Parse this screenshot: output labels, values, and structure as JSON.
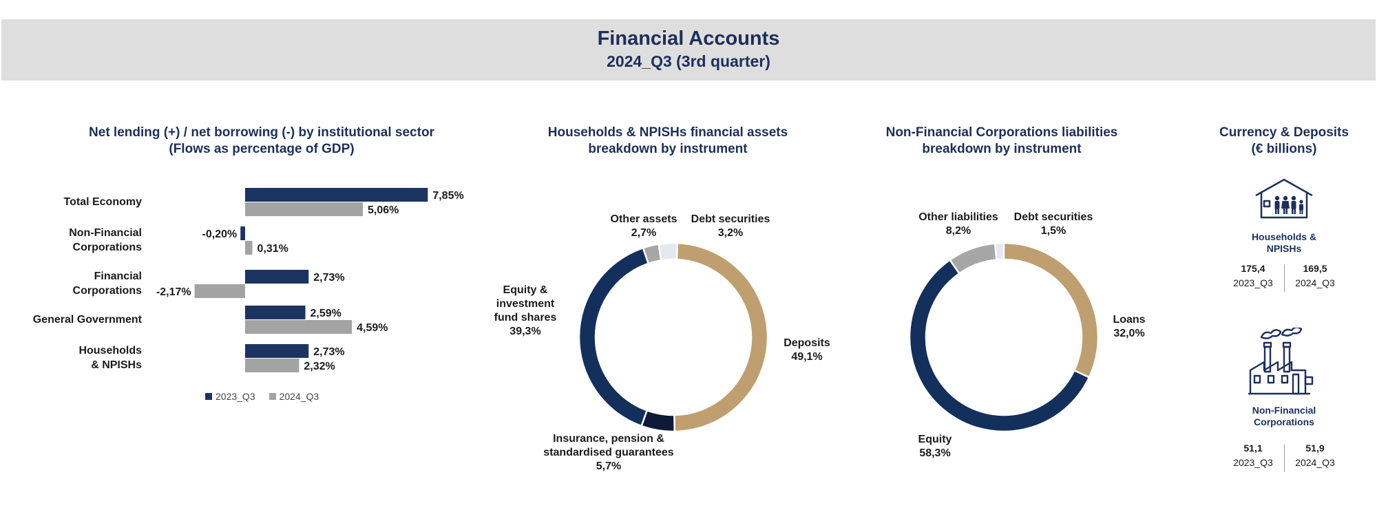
{
  "header": {
    "title": "Financial Accounts",
    "subtitle": "2024_Q3 (3rd quarter)"
  },
  "chart_data": [
    {
      "type": "bar",
      "orientation": "horizontal",
      "title_lines": [
        "Net lending (+) / net borrowing (-) by institutional sector",
        "(Flows as percentage of GDP)"
      ],
      "categories": [
        {
          "lines": [
            "Total Economy"
          ]
        },
        {
          "lines": [
            "Non-Financial",
            "Corporations"
          ]
        },
        {
          "lines": [
            "Financial",
            "Corporations"
          ]
        },
        {
          "lines": [
            "General Government"
          ]
        },
        {
          "lines": [
            "Households",
            "& NPISHs"
          ]
        }
      ],
      "series": [
        {
          "name": "2023_Q3",
          "color": "#1c3461",
          "values": [
            7.85,
            -0.2,
            2.73,
            2.59,
            2.73
          ],
          "labels": [
            "7,85%",
            "-0,20%",
            "2,73%",
            "2,59%",
            "2,73%"
          ]
        },
        {
          "name": "2024_Q3",
          "color": "#a3a3a3",
          "values": [
            5.06,
            0.31,
            -2.17,
            4.59,
            2.32
          ],
          "labels": [
            "5,06%",
            "0,31%",
            "-2,17%",
            "4,59%",
            "2,32%"
          ]
        }
      ],
      "legend_position": "bottom"
    },
    {
      "type": "pie",
      "donut": true,
      "title_lines": [
        "Households & NPISHs financial assets",
        "breakdown by instrument"
      ],
      "slices": [
        {
          "lines": [
            "Debt securities"
          ],
          "pct": "3,2%",
          "value": 3.2,
          "color": "#e4e8f1"
        },
        {
          "lines": [
            "Deposits"
          ],
          "pct": "49,1%",
          "value": 49.1,
          "color": "#bf9f6f"
        },
        {
          "lines": [
            "Insurance, pension &",
            "standardised guarantees"
          ],
          "pct": "5,7%",
          "value": 5.7,
          "color": "#0e1a36"
        },
        {
          "lines": [
            "Equity &",
            "investment",
            "fund shares"
          ],
          "pct": "39,3%",
          "value": 39.3,
          "color": "#13305d"
        },
        {
          "lines": [
            "Other assets"
          ],
          "pct": "2,7%",
          "value": 2.7,
          "color": "#a6a6a6"
        }
      ]
    },
    {
      "type": "pie",
      "donut": true,
      "title_lines": [
        "Non-Financial Corporations liabilities",
        "breakdown by instrument"
      ],
      "slices": [
        {
          "lines": [
            "Debt securities"
          ],
          "pct": "1,5%",
          "value": 1.5,
          "color": "#e4e8f1"
        },
        {
          "lines": [
            "Loans"
          ],
          "pct": "32,0%",
          "value": 32.0,
          "color": "#bf9f6f"
        },
        {
          "lines": [
            "Equity"
          ],
          "pct": "58,3%",
          "value": 58.3,
          "color": "#13305d"
        },
        {
          "lines": [
            "Other liabilities"
          ],
          "pct": "8,2%",
          "value": 8.2,
          "color": "#a6a6a6"
        }
      ]
    }
  ],
  "currency_deposits": {
    "title_lines": [
      "Currency & Deposits",
      "(€ billions)"
    ],
    "sectors": [
      {
        "icon": "house-family-icon",
        "lines": [
          "Households &",
          "NPISHs"
        ],
        "v2023": "175,4",
        "v2024": "169,5",
        "q2023": "2023_Q3",
        "q2024": "2024_Q3"
      },
      {
        "icon": "factory-icon",
        "lines": [
          "Non-Financial",
          "Corporations"
        ],
        "v2023": "51,1",
        "v2024": "51,9",
        "q2023": "2023_Q3",
        "q2024": "2024_Q3"
      }
    ]
  },
  "colors": {
    "navy": "#1c2f5c",
    "gold": "#bf9f6f",
    "grey": "#a3a3a3",
    "banner": "#dedede"
  }
}
